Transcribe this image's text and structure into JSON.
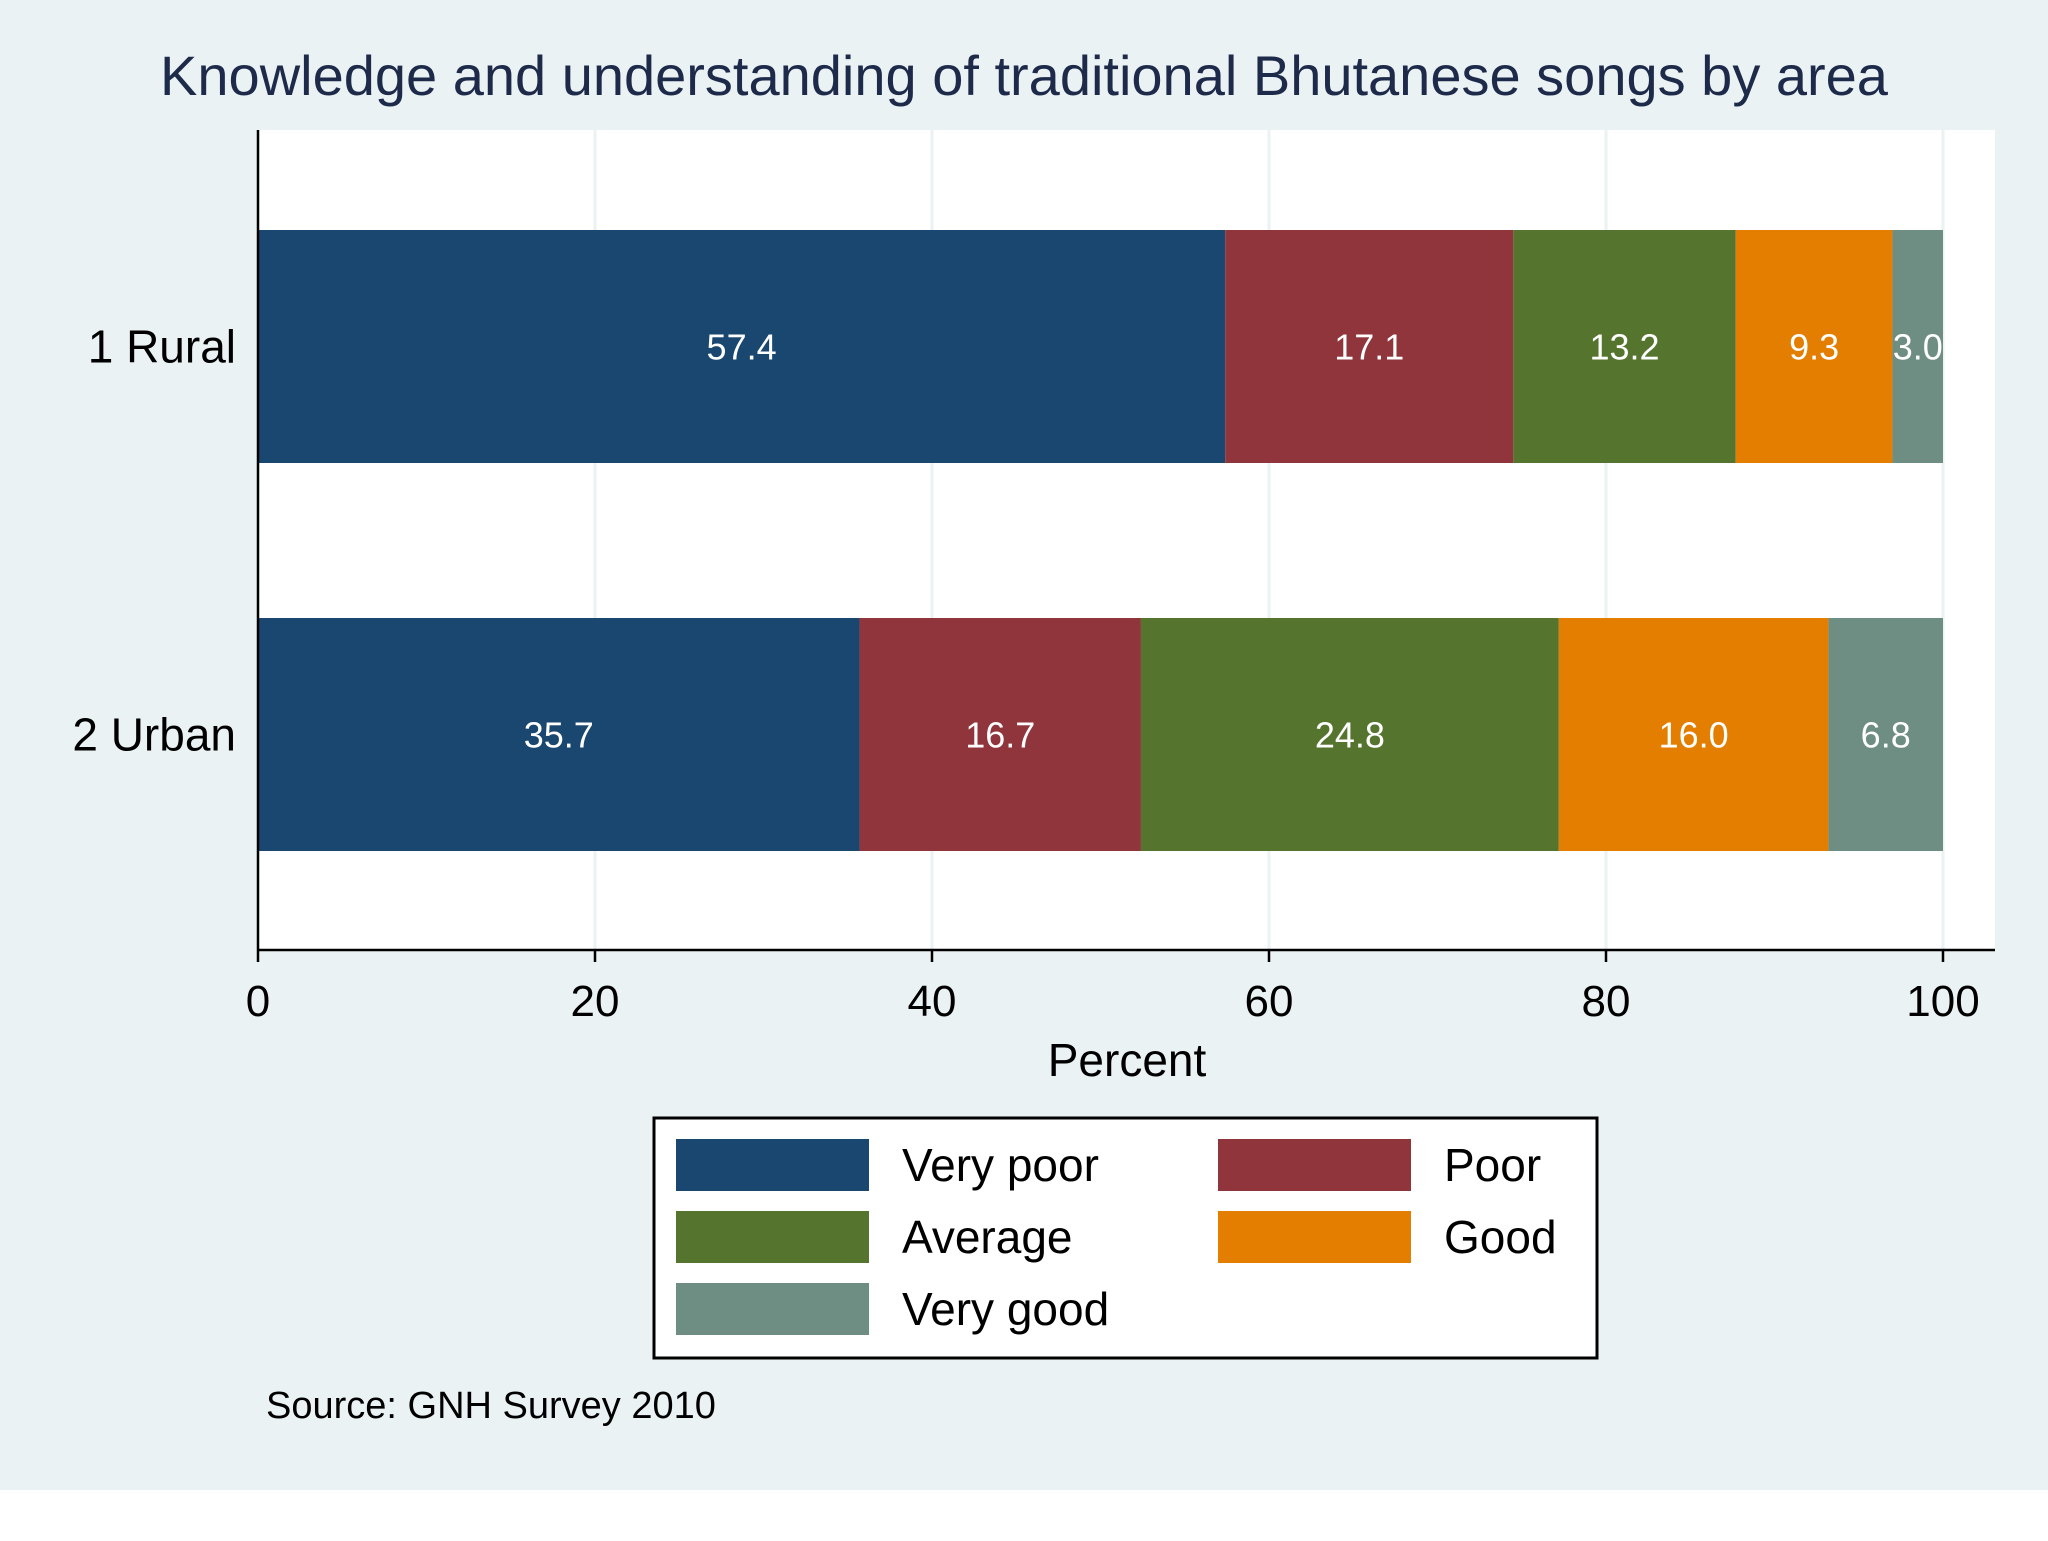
{
  "chart_data": {
    "type": "bar",
    "orientation": "horizontal",
    "stacked": true,
    "title": "Knowledge and understanding of traditional Bhutanese songs by area",
    "xlabel": "Percent",
    "ylabel": "",
    "xlim": [
      0,
      100
    ],
    "xticks": [
      0,
      20,
      40,
      60,
      80,
      100
    ],
    "categories": [
      "1 Rural",
      "2 Urban"
    ],
    "series": [
      {
        "name": "Very poor",
        "color": "#1a476f",
        "values": [
          57.4,
          35.7
        ]
      },
      {
        "name": "Poor",
        "color": "#90353b",
        "values": [
          17.1,
          16.7
        ]
      },
      {
        "name": "Average",
        "color": "#55752f",
        "values": [
          13.2,
          24.8
        ]
      },
      {
        "name": "Good",
        "color": "#e37e00",
        "values": [
          9.3,
          16.0
        ]
      },
      {
        "name": "Very good",
        "color": "#6e8e84",
        "values": [
          3.0,
          6.8
        ]
      }
    ],
    "data_labels": [
      [
        "57.4",
        "17.1",
        "13.2",
        "9.3",
        "3.0"
      ],
      [
        "35.7",
        "16.7",
        "24.8",
        "16.0",
        "6.8"
      ]
    ],
    "grid": true,
    "legend_position": "bottom",
    "note": "Source: GNH Survey 2010"
  },
  "colors": {
    "outer_background": "#eaf2f3",
    "plot_background": "#ffffff",
    "gridline": "#eaf2f3",
    "title_text": "#1e2a4a",
    "axis_text": "#000000",
    "data_label_text": "#ffffff"
  }
}
